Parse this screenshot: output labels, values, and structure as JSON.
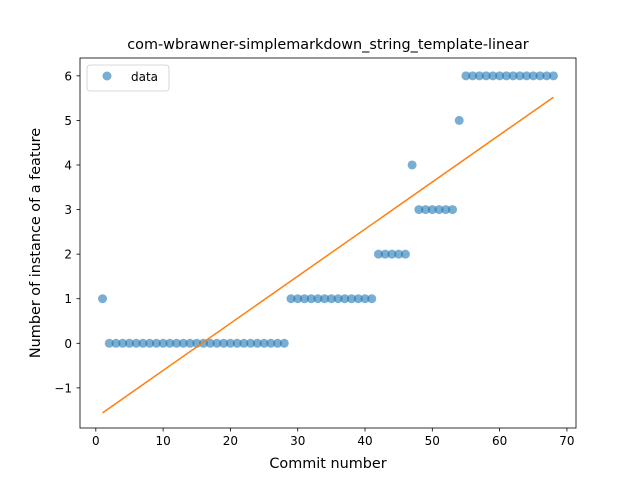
{
  "chart_data": {
    "type": "scatter",
    "title": "com-wbrawner-simplemarkdown_string_template-linear",
    "xlabel": "Commit number",
    "ylabel": "Number of instance of a feature",
    "xlim": [
      -2.35,
      71.35
    ],
    "ylim": [
      -1.9,
      6.4
    ],
    "xticks": [
      0,
      10,
      20,
      30,
      40,
      50,
      60,
      70
    ],
    "yticks": [
      -1,
      0,
      1,
      2,
      3,
      4,
      5,
      6
    ],
    "xtick_labels": [
      "0",
      "10",
      "20",
      "30",
      "40",
      "50",
      "60",
      "70"
    ],
    "ytick_labels": [
      "−1",
      "0",
      "1",
      "2",
      "3",
      "4",
      "5",
      "6"
    ],
    "grid": false,
    "legend": {
      "position": "top-left",
      "entries": [
        "data"
      ]
    },
    "series": [
      {
        "name": "data",
        "kind": "scatter",
        "color": "#1f77b4",
        "x": [
          1,
          2,
          3,
          4,
          5,
          6,
          7,
          8,
          9,
          10,
          11,
          12,
          13,
          14,
          15,
          16,
          17,
          18,
          19,
          20,
          21,
          22,
          23,
          24,
          25,
          26,
          27,
          28,
          29,
          30,
          31,
          32,
          33,
          34,
          35,
          36,
          37,
          38,
          39,
          40,
          41,
          42,
          43,
          44,
          45,
          46,
          47,
          48,
          49,
          50,
          51,
          52,
          53,
          54,
          55,
          56,
          57,
          58,
          59,
          60,
          61,
          62,
          63,
          64,
          65,
          66,
          67,
          68
        ],
        "y": [
          1,
          0,
          0,
          0,
          0,
          0,
          0,
          0,
          0,
          0,
          0,
          0,
          0,
          0,
          0,
          0,
          0,
          0,
          0,
          0,
          0,
          0,
          0,
          0,
          0,
          0,
          0,
          0,
          1,
          1,
          1,
          1,
          1,
          1,
          1,
          1,
          1,
          1,
          1,
          1,
          1,
          2,
          2,
          2,
          2,
          2,
          4,
          3,
          3,
          3,
          3,
          3,
          3,
          5,
          6,
          6,
          6,
          6,
          6,
          6,
          6,
          6,
          6,
          6,
          6,
          6,
          6,
          6
        ]
      },
      {
        "kind": "line",
        "color": "#ff7f0e",
        "x": [
          1,
          68
        ],
        "y": [
          -1.56,
          5.52
        ]
      }
    ]
  }
}
